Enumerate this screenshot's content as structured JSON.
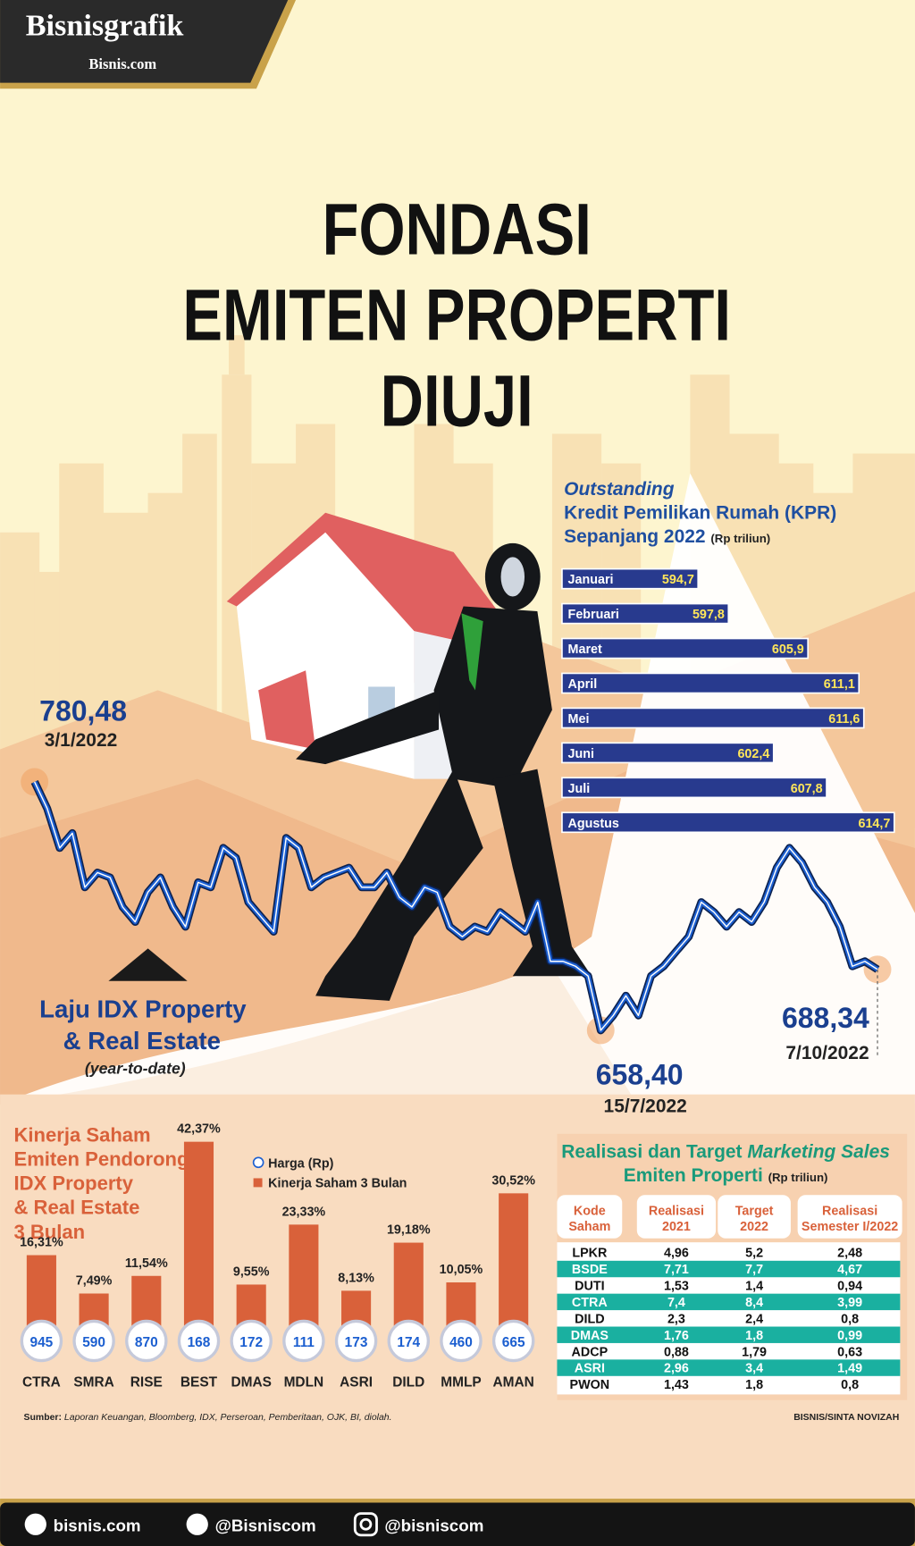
{
  "header": {
    "brand": "Bisnisgrafik",
    "site": "Bisnis.com"
  },
  "title": [
    "FONDASI",
    "EMITEN PROPERTI",
    "DIUJI"
  ],
  "chart_data": [
    {
      "type": "line",
      "color": "#1c5fd0",
      "annotation": [
        "Laju IDX Property",
        "& Real Estate",
        "(year-to-date)"
      ],
      "categories": [
        "3/1/2022",
        null,
        null,
        null,
        null,
        null,
        null,
        null,
        null,
        null,
        null,
        null,
        null,
        null,
        null,
        null,
        null,
        null,
        null,
        null,
        null,
        null,
        null,
        null,
        null,
        null,
        null,
        null,
        null,
        null,
        null,
        null,
        null,
        null,
        null,
        null,
        null,
        null,
        null,
        null,
        null,
        null,
        null,
        null,
        null,
        "15/7/2022",
        null,
        null,
        null,
        null,
        null,
        null,
        null,
        null,
        null,
        null,
        null,
        null,
        null,
        null,
        null,
        null,
        null,
        null,
        null,
        null,
        null,
        "7/10/2022"
      ],
      "values": [
        780.48,
        767.4,
        748.0,
        755.3,
        728.7,
        735.9,
        733.5,
        719.0,
        711.7,
        726.2,
        733.5,
        719.0,
        709.3,
        731.1,
        728.7,
        748.0,
        743.2,
        721.4,
        714.1,
        706.9,
        752.9,
        748.0,
        728.7,
        733.5,
        735.9,
        738.3,
        728.7,
        728.7,
        735.9,
        723.8,
        719.0,
        728.7,
        726.2,
        709.3,
        704.4,
        709.3,
        706.9,
        716.5,
        711.7,
        706.9,
        721.4,
        692.3,
        692.3,
        689.9,
        685.1,
        658.4,
        665.7,
        675.4,
        665.7,
        685.1,
        689.9,
        697.2,
        704.4,
        721.4,
        716.5,
        709.3,
        716.5,
        711.7,
        721.4,
        738.3,
        748.0,
        740.8,
        728.7,
        721.4,
        709.3,
        689.9,
        692.3,
        688.34
      ],
      "value_labels": [
        "780,48",
        null,
        null,
        null,
        null,
        null,
        null,
        null,
        null,
        null,
        null,
        null,
        null,
        null,
        null,
        null,
        null,
        null,
        null,
        null,
        null,
        null,
        null,
        null,
        null,
        null,
        null,
        null,
        null,
        null,
        null,
        null,
        null,
        null,
        null,
        null,
        null,
        null,
        null,
        null,
        null,
        null,
        null,
        null,
        null,
        "658,40",
        null,
        null,
        null,
        null,
        null,
        null,
        null,
        null,
        null,
        null,
        null,
        null,
        null,
        null,
        null,
        null,
        null,
        null,
        null,
        null,
        null,
        "688,34"
      ]
    },
    {
      "type": "hbar",
      "color": "#283a8e",
      "title": [
        "Outstanding",
        "Kredit Pemilikan Rumah (KPR)",
        "Sepanjang 2022"
      ],
      "unit": "(Rp triliun)",
      "categories": [
        "Januari",
        "Februari",
        "Maret",
        "April",
        "Mei",
        "Juni",
        "Juli",
        "Agustus"
      ],
      "values": [
        594.7,
        597.8,
        605.9,
        611.1,
        611.6,
        602.4,
        607.8,
        614.7
      ],
      "value_labels": [
        "594,7",
        "597,8",
        "605,9",
        "611,1",
        "611,6",
        "602,4",
        "607,8",
        "614,7"
      ]
    },
    {
      "type": "bar",
      "title": [
        "Kinerja Saham",
        "Emiten Pendorong",
        "IDX Property",
        "& Real Estate",
        "3 Bulan"
      ],
      "categories": [
        "CTRA",
        "SMRA",
        "RISE",
        "BEST",
        "DMAS",
        "MDLN",
        "ASRI",
        "DILD",
        "MMLP",
        "AMAN"
      ],
      "series": [
        {
          "name": "Kinerja Saham 3 Bulan",
          "color": "#d9613a",
          "values": [
            16.31,
            7.49,
            11.54,
            42.37,
            9.55,
            23.33,
            8.13,
            19.18,
            10.05,
            30.52
          ],
          "value_labels": [
            "16,31%",
            "7,49%",
            "11,54%",
            "42,37%",
            "9,55%",
            "23,33%",
            "8,13%",
            "19,18%",
            "10,05%",
            "30,52%"
          ]
        },
        {
          "name": "Harga (Rp)",
          "color": "#1c5fd0",
          "marker": "circle",
          "values": [
            945,
            590,
            870,
            168,
            172,
            111,
            173,
            174,
            460,
            665
          ]
        }
      ]
    }
  ],
  "table": {
    "title": [
      "Realisasi dan Target",
      "Marketing Sales",
      "Emiten Properti",
      "(Rp triliun)"
    ],
    "columns": [
      [
        "Kode",
        "Saham"
      ],
      [
        "Realisasi",
        "2021"
      ],
      [
        "Target",
        "2022"
      ],
      [
        "Realisasi",
        "Semester I/2022"
      ]
    ],
    "rows": [
      [
        "LPKR",
        "4,96",
        "5,2",
        "2,48"
      ],
      [
        "BSDE",
        "7,71",
        "7,7",
        "4,67"
      ],
      [
        "DUTI",
        "1,53",
        "1,4",
        "0,94"
      ],
      [
        "CTRA",
        "7,4",
        "8,4",
        "3,99"
      ],
      [
        "DILD",
        "2,3",
        "2,4",
        "0,8"
      ],
      [
        "DMAS",
        "1,76",
        "1,8",
        "0,99"
      ],
      [
        "ADCP",
        "0,88",
        "1,79",
        "0,63"
      ],
      [
        "ASRI",
        "2,96",
        "3,4",
        "1,49"
      ],
      [
        "PWON",
        "1,43",
        "1,8",
        "0,8"
      ]
    ]
  },
  "source": {
    "label": "Sumber:",
    "text": "Laporan Keuangan, Bloomberg, IDX, Perseroan, Pemberitaan, OJK, BI, diolah."
  },
  "credit": "BISNIS/SINTA NOVIZAH",
  "footer": [
    "bisnis.com",
    "@Bisniscom",
    "@bisniscom"
  ]
}
